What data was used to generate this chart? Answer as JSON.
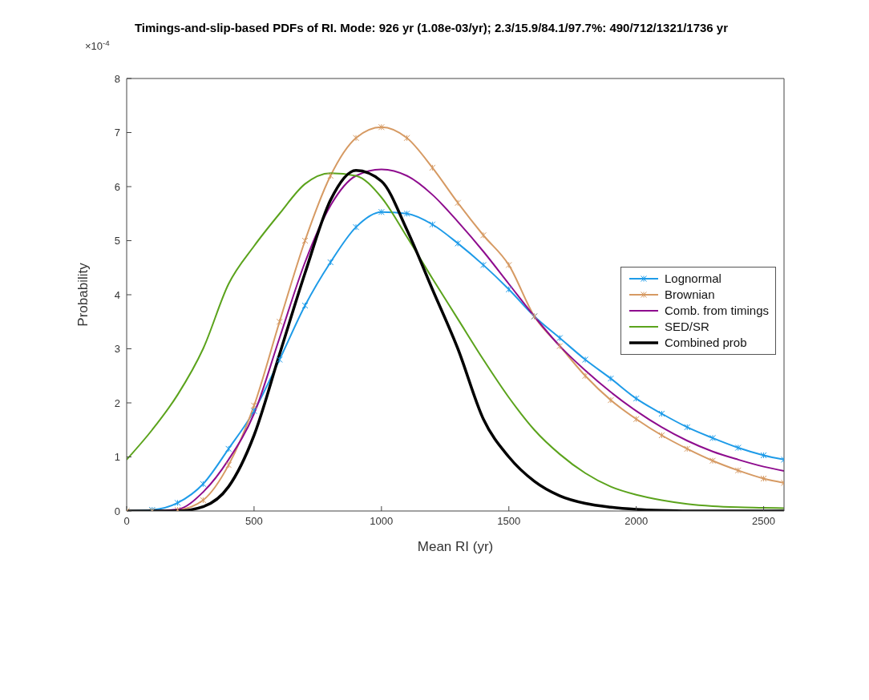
{
  "chart_data": {
    "type": "line",
    "title": "Timings-and-slip-based PDFs of RI. Mode: 926 yr (1.08e-03/yr); 2.3/15.9/84.1/97.7%: 490/712/1321/1736 yr",
    "xlabel": "Mean RI (yr)",
    "ylabel": "Probability",
    "annotations": [
      "×10$^{-4}$"
    ],
    "x": [
      0,
      100,
      200,
      300,
      400,
      500,
      600,
      700,
      800,
      900,
      1000,
      1100,
      1200,
      1300,
      1400,
      1500,
      1600,
      1700,
      1800,
      1900,
      2000,
      2100,
      2200,
      2300,
      2400,
      2500,
      2580
    ],
    "series": [
      {
        "name": "Lognormal",
        "color": "#1e9be8",
        "marker": "cross",
        "values": [
          0,
          0.02,
          0.15,
          0.5,
          1.15,
          1.85,
          2.8,
          3.8,
          4.6,
          5.25,
          5.53,
          5.5,
          5.3,
          4.95,
          4.55,
          4.1,
          3.6,
          3.2,
          2.8,
          2.45,
          2.08,
          1.8,
          1.55,
          1.35,
          1.17,
          1.03,
          0.95
        ]
      },
      {
        "name": "Brownian",
        "color": "#d69a63",
        "marker": "cross",
        "values": [
          0,
          0,
          0.02,
          0.2,
          0.85,
          1.95,
          3.5,
          5.0,
          6.2,
          6.9,
          7.1,
          6.9,
          6.35,
          5.7,
          5.1,
          4.55,
          3.6,
          3.05,
          2.5,
          2.05,
          1.7,
          1.4,
          1.15,
          0.93,
          0.75,
          0.6,
          0.52
        ]
      },
      {
        "name": "Comb. from timings",
        "color": "#8e0c8e",
        "marker": "none",
        "values": [
          0,
          0,
          0.03,
          0.35,
          0.95,
          1.8,
          3.2,
          4.6,
          5.65,
          6.2,
          6.32,
          6.2,
          5.85,
          5.35,
          4.8,
          4.2,
          3.6,
          3.05,
          2.6,
          2.2,
          1.85,
          1.55,
          1.3,
          1.1,
          0.95,
          0.82,
          0.74
        ]
      },
      {
        "name": "SED/SR",
        "color": "#5ba31c",
        "marker": "none",
        "values": [
          0.95,
          1.5,
          2.15,
          3.0,
          4.2,
          4.9,
          5.5,
          6.05,
          6.25,
          6.2,
          5.8,
          5.07,
          4.3,
          3.55,
          2.8,
          2.1,
          1.5,
          1.05,
          0.7,
          0.45,
          0.3,
          0.2,
          0.13,
          0.09,
          0.07,
          0.06,
          0.05
        ]
      },
      {
        "name": "Combined prob",
        "color": "#000000",
        "marker": "none",
        "values": [
          0,
          0,
          0,
          0.08,
          0.45,
          1.4,
          2.9,
          4.4,
          5.75,
          6.3,
          6.1,
          5.2,
          4.1,
          3.0,
          1.7,
          1.0,
          0.55,
          0.28,
          0.14,
          0.07,
          0.03,
          0.01,
          0,
          0,
          0,
          0,
          0
        ]
      }
    ],
    "xlim": [
      0,
      2580
    ],
    "xticks": [
      0,
      500,
      1000,
      1500,
      2000,
      2500
    ],
    "ylim": [
      0,
      8
    ],
    "yticks": [
      0,
      1,
      2,
      3,
      4,
      5,
      6,
      7,
      8
    ],
    "grid": false,
    "legend": "right"
  }
}
